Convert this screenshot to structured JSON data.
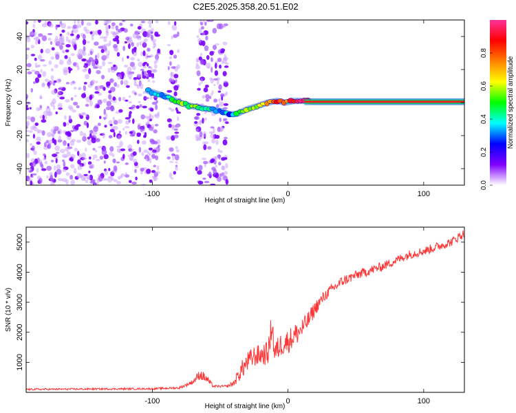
{
  "title": "C2E5.2025.358.20.51.E02",
  "chart_data": [
    {
      "type": "heatmap",
      "xlabel": "Height of straight line (km)",
      "ylabel": "Frequency (Hz)",
      "xlim": [
        -193,
        130
      ],
      "ylim": [
        -50,
        50
      ],
      "xticks": [
        -100,
        0,
        100
      ],
      "yticks": [
        -40,
        -20,
        0,
        20,
        40
      ],
      "colorbar": {
        "label": "Normalized spectral amplitude",
        "range": [
          0,
          1
        ],
        "ticks": [
          "0.0",
          "0.2",
          "0.4",
          "0.6",
          "0.8"
        ],
        "colors": [
          "#ffffff",
          "#8000ff",
          "#0000ff",
          "#00ffff",
          "#00ff00",
          "#ffff00",
          "#ff8000",
          "#ff0000",
          "#ff3399"
        ]
      },
      "noise_regions_km": [
        [
          -193,
          -95
        ],
        [
          -88,
          -80
        ],
        [
          -68,
          -45
        ]
      ],
      "ridge": {
        "x": [
          -103,
          -95,
          -88,
          -80,
          -72,
          -65,
          -58,
          -50,
          -43,
          -38,
          -30,
          -22,
          -15,
          -8,
          -2,
          5,
          12,
          20,
          40,
          60,
          80,
          100,
          130
        ],
        "frequency": [
          7,
          5,
          3,
          0,
          -2,
          -3,
          -4,
          -5,
          -7,
          -7,
          -4,
          -2,
          0,
          1,
          0,
          1,
          1,
          0.5,
          0.5,
          0.5,
          0.5,
          0.5,
          0.5
        ],
        "amplitude": [
          0.25,
          0.35,
          0.35,
          0.45,
          0.5,
          0.45,
          0.35,
          0.2,
          0.3,
          0.45,
          0.55,
          0.6,
          0.7,
          0.75,
          0.75,
          0.8,
          0.85,
          0.9,
          0.9,
          0.9,
          0.9,
          0.9,
          0.9
        ]
      }
    },
    {
      "type": "line",
      "xlabel": "Height of straight line (km)",
      "ylabel": "SNR (10 * v/v)",
      "xlim": [
        -193,
        130
      ],
      "ylim": [
        0,
        5500
      ],
      "xticks": [
        -100,
        0,
        100
      ],
      "yticks": [
        1000,
        2000,
        3000,
        4000,
        5000
      ],
      "series": [
        {
          "name": "SNR",
          "color": "#ff3333",
          "x": [
            -193,
            -150,
            -100,
            -80,
            -70,
            -65,
            -60,
            -55,
            -45,
            -40,
            -35,
            -30,
            -25,
            -20,
            -15,
            -13,
            -12,
            -10,
            -5,
            0,
            5,
            10,
            15,
            20,
            25,
            30,
            40,
            50,
            60,
            70,
            80,
            90,
            100,
            110,
            120,
            130
          ],
          "y": [
            100,
            110,
            120,
            150,
            350,
            600,
            450,
            200,
            200,
            300,
            700,
            1000,
            1200,
            1250,
            1300,
            1700,
            2500,
            1300,
            1600,
            1700,
            1900,
            2100,
            2400,
            2800,
            3100,
            3350,
            3700,
            3900,
            4050,
            4200,
            4400,
            4600,
            4700,
            4850,
            5000,
            5300
          ],
          "noise_amplitude": [
            30,
            30,
            30,
            40,
            80,
            180,
            150,
            40,
            40,
            100,
            300,
            350,
            350,
            350,
            400,
            500,
            600,
            400,
            400,
            400,
            400,
            350,
            300,
            250,
            200,
            180,
            180,
            160,
            160,
            150,
            150,
            150,
            150,
            150,
            150,
            150
          ]
        }
      ]
    }
  ]
}
